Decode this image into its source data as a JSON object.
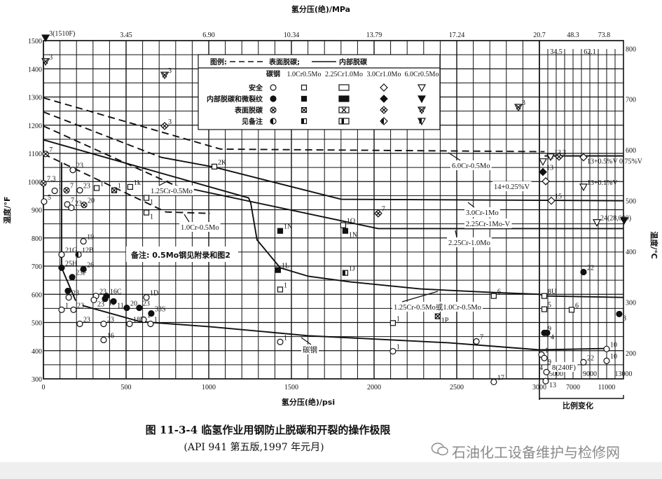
{
  "chart_data": {
    "type": "line",
    "title": "",
    "xlabel": "氢分压(绝)/psi",
    "x2label": "氢分压(绝)/MPa",
    "ylabel": "温度/°F",
    "y2label": "温度/℃",
    "xlim": [
      0,
      3000
    ],
    "x_scale_change_range": [
      3000,
      13000
    ],
    "x_scale_change_label": "比例变化",
    "ylim": [
      300,
      1500
    ],
    "grid": true,
    "x_ticks": [
      "0",
      "500",
      "1000",
      "1500",
      "2000",
      "2500",
      "3000"
    ],
    "x_ticks_scale_change": [
      "5000",
      "7000",
      "9000",
      "11000",
      "13000"
    ],
    "x2_ticks": [
      {
        "psi": 500,
        "label": "3.45"
      },
      {
        "psi": 1000,
        "label": "6.90"
      },
      {
        "psi": 1500,
        "label": "10.34"
      },
      {
        "psi": 2000,
        "label": "13.79"
      },
      {
        "psi": 2500,
        "label": "17.24"
      },
      {
        "psi": 3000,
        "label": "20.7"
      },
      {
        "psi": 5000,
        "label": "34.5"
      },
      {
        "psi": 7000,
        "label": "48.3"
      },
      {
        "psi": 9000,
        "label": "62.1"
      },
      {
        "psi": 10700,
        "label": "73.8"
      }
    ],
    "y_ticks": [
      "300",
      "400",
      "500",
      "600",
      "700",
      "800",
      "900",
      "1000",
      "1100",
      "1200",
      "1300",
      "1400",
      "1500"
    ],
    "y2_ticks": [
      "200",
      "300",
      "400",
      "500",
      "600",
      "700",
      "800"
    ],
    "legend": {
      "title": "图例:",
      "dashed_label": "表面脱碳;",
      "solid_label": "内部脱碳",
      "columns": [
        "碳钢",
        "1.0Cr0.5Mo",
        "2.25Cr1.0Mo",
        "3.0Cr1.0Mo",
        "6.0Cr0.5Mo"
      ],
      "rows": [
        "安全",
        "内部脱碳和微裂纹",
        "表面脱碳",
        "见备注"
      ]
    },
    "series": [
      {
        "name": "6.0Cr-0.5Mo",
        "segments": [
          {
            "style": "dashed",
            "points": [
              [
                0,
                1297
              ],
              [
                1072,
                1115
              ],
              [
                3617,
                1106
              ]
            ]
          },
          {
            "style": "solid",
            "points": [
              [
                3617,
                1091
              ],
              [
                12996,
                1091
              ]
            ]
          }
        ]
      },
      {
        "name": "3.0Cr-1Mo / 2.25Cr-1Mo-V",
        "segments": [
          {
            "style": "dashed",
            "points": [
              [
                0,
                1247
              ],
              [
                712,
                1086
              ]
            ]
          },
          {
            "style": "solid",
            "points": [
              [
                712,
                1086
              ],
              [
                1034,
                1051
              ],
              [
                1801,
                937
              ],
              [
                12996,
                932
              ]
            ]
          }
        ]
      },
      {
        "name": "2.25Cr-1.0Mo",
        "segments": [
          {
            "style": "dashed",
            "points": [
              [
                0,
                1197
              ],
              [
                797,
                986
              ]
            ]
          },
          {
            "style": "solid",
            "points": [
              [
                797,
                986
              ],
              [
                2025,
                833
              ],
              [
                12996,
                833
              ]
            ]
          }
        ]
      },
      {
        "name": "1.25Cr-0.5Mo",
        "segments": [
          {
            "style": "solid",
            "points": [
              [
                0,
                1148
              ],
              [
                1241,
                942
              ],
              [
                1254,
                924
              ],
              [
                1292,
                793
              ],
              [
                1432,
                694
              ],
              [
                1602,
                664
              ],
              [
                1856,
                644
              ],
              [
                2280,
                619
              ],
              [
                2703,
                607
              ],
              [
                3000,
                600
              ],
              [
                3833,
                594
              ],
              [
                12996,
                589
              ]
            ]
          }
        ]
      },
      {
        "name": "1.0Cr-0.5Mo",
        "segments": [
          {
            "style": "dashed",
            "points": [
              [
                0,
                1098
              ],
              [
                741,
                892
              ],
              [
                1008,
                887
              ]
            ]
          }
        ]
      },
      {
        "name": "碳钢",
        "segments": [
          {
            "style": "solid",
            "points": [
              [
                110,
                1068
              ],
              [
                110,
                694
              ],
              [
                195,
                577
              ]
            ]
          },
          {
            "style": "solid",
            "points": [
              [
                237,
                560
              ],
              [
                585,
                503
              ],
              [
                1008,
                485
              ],
              [
                1602,
                453
              ],
              [
                2449,
                428
              ],
              [
                3000,
                403
              ],
              [
                11080,
                408
              ]
            ]
          }
        ]
      }
    ],
    "curve_labels": [
      "6.0Cr-0.5Mo",
      "14+0.25%V",
      "3.0Cr-1Mo",
      "2.25Cr-1Mo-V",
      "2.25Cr-1.0Mo",
      "1.25Cr-0.5Mo",
      "1.0Cr-0.5Mo",
      "1.25Cr-0.5Mo或1.0Cr-0.5Mo",
      "碳钢",
      "8(240F)"
    ],
    "note": "备注: 0.5Mo钢见附录和图2",
    "points": [
      {
        "psi": 13,
        "t": 1510,
        "m": "cr6_internal",
        "label": "3(1510F)"
      },
      {
        "psi": 13,
        "t": 1426,
        "m": "cr6_surface",
        "label": "3"
      },
      {
        "psi": 733,
        "t": 1378,
        "m": "cr6_surface",
        "label": "3"
      },
      {
        "psi": 733,
        "t": 1197,
        "m": "cr3_surface",
        "label": "3"
      },
      {
        "psi": 2873,
        "t": 1264,
        "m": "cr6_surface",
        "label": "3"
      },
      {
        "psi": 13,
        "t": 1098,
        "m": "cs_surface",
        "label": "7"
      },
      {
        "psi": 178,
        "t": 1041,
        "m": "cs_safe",
        "label": "23"
      },
      {
        "psi": 0,
        "t": 994,
        "m": "cs_surface",
        "label": "7.3"
      },
      {
        "psi": 68,
        "t": 967,
        "m": "cs_safe",
        "label": "1"
      },
      {
        "psi": 140,
        "t": 969,
        "m": "cs_surface",
        "label": "7"
      },
      {
        "psi": 220,
        "t": 969,
        "m": "cs_safe",
        "label": "23"
      },
      {
        "psi": 322,
        "t": 977,
        "m": "cr1_safe",
        "label": "1"
      },
      {
        "psi": 428,
        "t": 969,
        "m": "cr1_surface",
        "label": "1"
      },
      {
        "psi": 525,
        "t": 981,
        "m": "cr1_safe",
        "label": "1k"
      },
      {
        "psi": 623,
        "t": 942,
        "m": "cr1_safe",
        "label": "1"
      },
      {
        "psi": 623,
        "t": 890,
        "m": "cr1_safe",
        "label": "1"
      },
      {
        "psi": 1034,
        "t": 1053,
        "m": "cr1_safe",
        "label": "2K"
      },
      {
        "psi": 4,
        "t": 929,
        "m": "cs_safe",
        "label": "5"
      },
      {
        "psi": 144,
        "t": 919,
        "m": "cs_safe",
        "label": "7"
      },
      {
        "psi": 169,
        "t": 907,
        "m": "cs_safe",
        "label": "23"
      },
      {
        "psi": 246,
        "t": 917,
        "m": "cs_surface",
        "label": "20"
      },
      {
        "psi": 242,
        "t": 788,
        "m": "cs_safe",
        "label": "19"
      },
      {
        "psi": 110,
        "t": 741,
        "m": "cs_safe",
        "label": "21G"
      },
      {
        "psi": 212,
        "t": 741,
        "m": "cs_note",
        "label": "12B"
      },
      {
        "psi": 110,
        "t": 694,
        "m": "cs_internal",
        "label": "25H"
      },
      {
        "psi": 242,
        "t": 689,
        "m": "cs_internal",
        "label": "26"
      },
      {
        "psi": 174,
        "t": 661,
        "m": "cs_internal",
        "label": "23F"
      },
      {
        "psi": 148,
        "t": 612,
        "m": "cs_internal",
        "label": ""
      },
      {
        "psi": 153,
        "t": 589,
        "m": "cs_safe",
        "label": "23"
      },
      {
        "psi": 110,
        "t": 545,
        "m": "cs_safe",
        "label": "1"
      },
      {
        "psi": 182,
        "t": 545,
        "m": "cs_safe",
        "label": "23"
      },
      {
        "psi": 220,
        "t": 495,
        "m": "cs_safe",
        "label": "23"
      },
      {
        "psi": 318,
        "t": 594,
        "m": "cs_safe",
        "label": "23"
      },
      {
        "psi": 305,
        "t": 580,
        "m": "cs_safe",
        "label": "23"
      },
      {
        "psi": 381,
        "t": 594,
        "m": "cs_internal",
        "label": "16C"
      },
      {
        "psi": 373,
        "t": 584,
        "m": "cs_internal",
        "label": "19"
      },
      {
        "psi": 424,
        "t": 575,
        "m": "cs_internal",
        "label": "11"
      },
      {
        "psi": 504,
        "t": 552,
        "m": "cs_internal",
        "label": "20"
      },
      {
        "psi": 580,
        "t": 552,
        "m": "cs_internal",
        "label": "23"
      },
      {
        "psi": 623,
        "t": 589,
        "m": "cs_safe",
        "label": "1D"
      },
      {
        "psi": 652,
        "t": 532,
        "m": "cs_internal",
        "label": "33S"
      },
      {
        "psi": 606,
        "t": 510,
        "m": "cs_safe",
        "label": "1"
      },
      {
        "psi": 364,
        "t": 495,
        "m": "cs_safe",
        "label": "23"
      },
      {
        "psi": 364,
        "t": 438,
        "m": "cs_safe",
        "label": "16"
      },
      {
        "psi": 521,
        "t": 495,
        "m": "cs_safe",
        "label": "18T"
      },
      {
        "psi": 648,
        "t": 495,
        "m": "cs_safe",
        "label": "1"
      },
      {
        "psi": 1432,
        "t": 825,
        "m": "cr1_internal",
        "label": "1N"
      },
      {
        "psi": 1813,
        "t": 845,
        "m": "cr1_safe",
        "label": "1O"
      },
      {
        "psi": 1826,
        "t": 825,
        "m": "cr1_internal",
        "label": "1N"
      },
      {
        "psi": 2025,
        "t": 887,
        "m": "cr3_surface",
        "label": "7"
      },
      {
        "psi": 1419,
        "t": 686,
        "m": "cr1_internal",
        "label": "1L"
      },
      {
        "psi": 1432,
        "t": 617,
        "m": "cr1_safe",
        "label": "1"
      },
      {
        "psi": 1826,
        "t": 676,
        "m": "cr1_note",
        "label": "1J"
      },
      {
        "psi": 2114,
        "t": 498,
        "m": "cr1_safe",
        "label": "1"
      },
      {
        "psi": 1432,
        "t": 431,
        "m": "cs_safe",
        "label": "1"
      },
      {
        "psi": 2114,
        "t": 398,
        "m": "cs_safe",
        "label": "1"
      },
      {
        "psi": 2385,
        "t": 522,
        "m": "cr1_surface",
        "label": "1P"
      },
      {
        "psi": 2724,
        "t": 594,
        "m": "cr1_safe",
        "label": "6"
      },
      {
        "psi": 2619,
        "t": 433,
        "m": "cs_safe",
        "label": "7"
      },
      {
        "psi": 2724,
        "t": 289,
        "m": "cs_safe",
        "label": "17"
      },
      {
        "psi": 3583,
        "t": 594,
        "m": "cr1_safe",
        "label": "8U"
      },
      {
        "psi": 3583,
        "t": 547,
        "m": "cr1_safe",
        "label": "5"
      },
      {
        "psi": 6832,
        "t": 545,
        "m": "cr1_safe",
        "label": "6"
      },
      {
        "psi": 3583,
        "t": 463,
        "m": "cs_internal",
        "label": "9"
      },
      {
        "psi": 3916,
        "t": 463,
        "m": "cs_internal",
        "label": "4"
      },
      {
        "psi": 8248,
        "t": 679,
        "m": "cs_internal",
        "label": "22"
      },
      {
        "psi": 12496,
        "t": 530,
        "m": "cs_internal",
        "label": "3"
      },
      {
        "psi": 3250,
        "t": 386,
        "m": "cs_safe",
        "label": "1"
      },
      {
        "psi": 3583,
        "t": 374,
        "m": "cs_safe",
        "label": "9"
      },
      {
        "psi": 8248,
        "t": 359,
        "m": "cs_safe",
        "label": "22"
      },
      {
        "psi": 10997,
        "t": 406,
        "m": "cs_safe",
        "label": "10"
      },
      {
        "psi": 10997,
        "t": 364,
        "m": "cs_safe",
        "label": "10"
      },
      {
        "psi": 3833,
        "t": 324,
        "m": "cs_safe",
        "label": "4"
      },
      {
        "psi": 3750,
        "t": 292,
        "m": "cs_safe",
        "label": "13"
      },
      {
        "psi": 3416,
        "t": 1071,
        "m": "cr6_safe",
        "label": "13"
      },
      {
        "psi": 4333,
        "t": 1088,
        "m": "cr6_safe",
        "label": "13"
      },
      {
        "psi": 5332,
        "t": 1088,
        "m": "cr3_surface",
        "label": "3"
      },
      {
        "psi": 3416,
        "t": 1034,
        "m": "cr3_internal",
        "label": "13"
      },
      {
        "psi": 3750,
        "t": 1001,
        "m": "cr3_safe",
        "label": ""
      },
      {
        "psi": 4416,
        "t": 932,
        "m": "cr3_safe",
        "label": "15"
      },
      {
        "psi": 8248,
        "t": 1086,
        "m": "cr3_safe",
        "label": "13+0.5%V 0.75%V"
      },
      {
        "psi": 8248,
        "t": 981,
        "m": "cr6_safe",
        "label": "13+0.1%V"
      },
      {
        "psi": 9831,
        "t": 855,
        "m": "cr6_safe",
        "label": "24(28,000)"
      },
      {
        "psi": 13080,
        "t": 862,
        "m": "cr6_internal",
        "label": ""
      }
    ]
  },
  "caption": {
    "figure": "图 11-3-4   临氢作业用钢防止脱碳和开裂的操作极限",
    "source": "(API 941 第五版,1997 年元月)"
  },
  "watermark": "石油化工设备维护与检修网",
  "colors": {
    "ink": "#111111",
    "background": "#ffffff",
    "watermark": "#8a8a8a"
  }
}
